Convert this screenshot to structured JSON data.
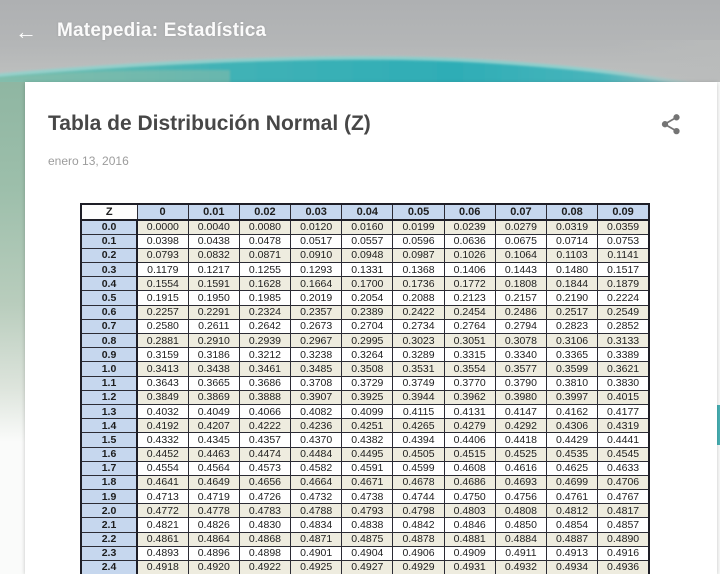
{
  "app_bar": {
    "back_icon": "arrow-left",
    "title": "Matepedia: Estadística"
  },
  "post": {
    "title": "Tabla de Distribución Normal (Z)",
    "date": "enero 13, 2016",
    "share_icon": "share"
  },
  "colors": {
    "banner_teal": "#35b0b8",
    "banner_gray": "#b2b4b6",
    "side_green": "#93b8a4",
    "table_header_blue": "#c6d7ee",
    "table_stripe_beige": "#eeecdf",
    "table_border": "#1e1e27"
  },
  "table": {
    "corner_header": "Z",
    "col_headers": [
      "0",
      "0.01",
      "0.02",
      "0.03",
      "0.04",
      "0.05",
      "0.06",
      "0.07",
      "0.08",
      "0.09"
    ],
    "rows": [
      {
        "z": "0.0",
        "values": [
          "0.0000",
          "0.0040",
          "0.0080",
          "0.0120",
          "0.0160",
          "0.0199",
          "0.0239",
          "0.0279",
          "0.0319",
          "0.0359"
        ]
      },
      {
        "z": "0.1",
        "values": [
          "0.0398",
          "0.0438",
          "0.0478",
          "0.0517",
          "0.0557",
          "0.0596",
          "0.0636",
          "0.0675",
          "0.0714",
          "0.0753"
        ]
      },
      {
        "z": "0.2",
        "values": [
          "0.0793",
          "0.0832",
          "0.0871",
          "0.0910",
          "0.0948",
          "0.0987",
          "0.1026",
          "0.1064",
          "0.1103",
          "0.1141"
        ]
      },
      {
        "z": "0.3",
        "values": [
          "0.1179",
          "0.1217",
          "0.1255",
          "0.1293",
          "0.1331",
          "0.1368",
          "0.1406",
          "0.1443",
          "0.1480",
          "0.1517"
        ]
      },
      {
        "z": "0.4",
        "values": [
          "0.1554",
          "0.1591",
          "0.1628",
          "0.1664",
          "0.1700",
          "0.1736",
          "0.1772",
          "0.1808",
          "0.1844",
          "0.1879"
        ]
      },
      {
        "z": "0.5",
        "values": [
          "0.1915",
          "0.1950",
          "0.1985",
          "0.2019",
          "0.2054",
          "0.2088",
          "0.2123",
          "0.2157",
          "0.2190",
          "0.2224"
        ]
      },
      {
        "z": "0.6",
        "values": [
          "0.2257",
          "0.2291",
          "0.2324",
          "0.2357",
          "0.2389",
          "0.2422",
          "0.2454",
          "0.2486",
          "0.2517",
          "0.2549"
        ]
      },
      {
        "z": "0.7",
        "values": [
          "0.2580",
          "0.2611",
          "0.2642",
          "0.2673",
          "0.2704",
          "0.2734",
          "0.2764",
          "0.2794",
          "0.2823",
          "0.2852"
        ]
      },
      {
        "z": "0.8",
        "values": [
          "0.2881",
          "0.2910",
          "0.2939",
          "0.2967",
          "0.2995",
          "0.3023",
          "0.3051",
          "0.3078",
          "0.3106",
          "0.3133"
        ]
      },
      {
        "z": "0.9",
        "values": [
          "0.3159",
          "0.3186",
          "0.3212",
          "0.3238",
          "0.3264",
          "0.3289",
          "0.3315",
          "0.3340",
          "0.3365",
          "0.3389"
        ]
      },
      {
        "z": "1.0",
        "values": [
          "0.3413",
          "0.3438",
          "0.3461",
          "0.3485",
          "0.3508",
          "0.3531",
          "0.3554",
          "0.3577",
          "0.3599",
          "0.3621"
        ]
      },
      {
        "z": "1.1",
        "values": [
          "0.3643",
          "0.3665",
          "0.3686",
          "0.3708",
          "0.3729",
          "0.3749",
          "0.3770",
          "0.3790",
          "0.3810",
          "0.3830"
        ]
      },
      {
        "z": "1.2",
        "values": [
          "0.3849",
          "0.3869",
          "0.3888",
          "0.3907",
          "0.3925",
          "0.3944",
          "0.3962",
          "0.3980",
          "0.3997",
          "0.4015"
        ]
      },
      {
        "z": "1.3",
        "values": [
          "0.4032",
          "0.4049",
          "0.4066",
          "0.4082",
          "0.4099",
          "0.4115",
          "0.4131",
          "0.4147",
          "0.4162",
          "0.4177"
        ]
      },
      {
        "z": "1.4",
        "values": [
          "0.4192",
          "0.4207",
          "0.4222",
          "0.4236",
          "0.4251",
          "0.4265",
          "0.4279",
          "0.4292",
          "0.4306",
          "0.4319"
        ]
      },
      {
        "z": "1.5",
        "values": [
          "0.4332",
          "0.4345",
          "0.4357",
          "0.4370",
          "0.4382",
          "0.4394",
          "0.4406",
          "0.4418",
          "0.4429",
          "0.4441"
        ]
      },
      {
        "z": "1.6",
        "values": [
          "0.4452",
          "0.4463",
          "0.4474",
          "0.4484",
          "0.4495",
          "0.4505",
          "0.4515",
          "0.4525",
          "0.4535",
          "0.4545"
        ]
      },
      {
        "z": "1.7",
        "values": [
          "0.4554",
          "0.4564",
          "0.4573",
          "0.4582",
          "0.4591",
          "0.4599",
          "0.4608",
          "0.4616",
          "0.4625",
          "0.4633"
        ]
      },
      {
        "z": "1.8",
        "values": [
          "0.4641",
          "0.4649",
          "0.4656",
          "0.4664",
          "0.4671",
          "0.4678",
          "0.4686",
          "0.4693",
          "0.4699",
          "0.4706"
        ]
      },
      {
        "z": "1.9",
        "values": [
          "0.4713",
          "0.4719",
          "0.4726",
          "0.4732",
          "0.4738",
          "0.4744",
          "0.4750",
          "0.4756",
          "0.4761",
          "0.4767"
        ]
      },
      {
        "z": "2.0",
        "values": [
          "0.4772",
          "0.4778",
          "0.4783",
          "0.4788",
          "0.4793",
          "0.4798",
          "0.4803",
          "0.4808",
          "0.4812",
          "0.4817"
        ]
      },
      {
        "z": "2.1",
        "values": [
          "0.4821",
          "0.4826",
          "0.4830",
          "0.4834",
          "0.4838",
          "0.4842",
          "0.4846",
          "0.4850",
          "0.4854",
          "0.4857"
        ]
      },
      {
        "z": "2.2",
        "values": [
          "0.4861",
          "0.4864",
          "0.4868",
          "0.4871",
          "0.4875",
          "0.4878",
          "0.4881",
          "0.4884",
          "0.4887",
          "0.4890"
        ]
      },
      {
        "z": "2.3",
        "values": [
          "0.4893",
          "0.4896",
          "0.4898",
          "0.4901",
          "0.4904",
          "0.4906",
          "0.4909",
          "0.4911",
          "0.4913",
          "0.4916"
        ]
      },
      {
        "z": "2.4",
        "values": [
          "0.4918",
          "0.4920",
          "0.4922",
          "0.4925",
          "0.4927",
          "0.4929",
          "0.4931",
          "0.4932",
          "0.4934",
          "0.4936"
        ]
      }
    ]
  }
}
